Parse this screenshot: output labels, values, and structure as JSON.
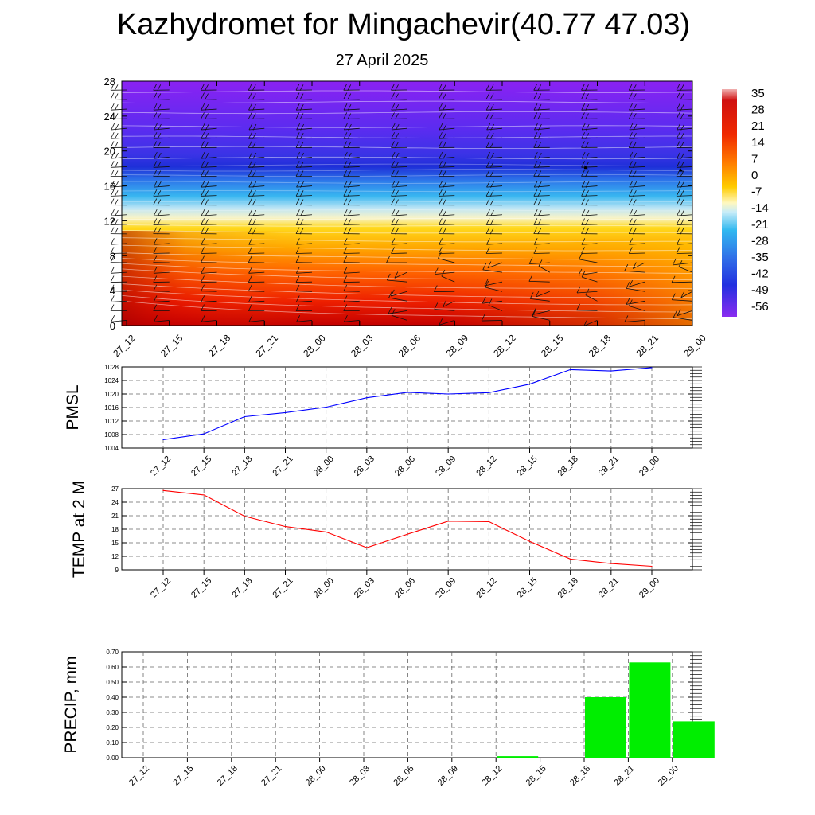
{
  "header": {
    "title": "Kazhydromet for Mingachevir(40.77 47.03)",
    "subtitle": "27 April 2025"
  },
  "chart_data": [
    {
      "type": "heatmap",
      "description_kind": "vertical cross-section with filled contours and wind barbs",
      "x_categories": [
        "27_12",
        "27_15",
        "27_18",
        "27_21",
        "28_00",
        "28_03",
        "28_06",
        "28_09",
        "28_12",
        "28_15",
        "28_18",
        "28_21",
        "29_00"
      ],
      "y_ticks": [
        0,
        4,
        8,
        12,
        16,
        20,
        24,
        28
      ],
      "ylim": [
        0,
        28
      ],
      "colorbar_labels": [
        "35",
        "28",
        "21",
        "14",
        "7",
        "0",
        "-7",
        "-14",
        "-21",
        "-28",
        "-35",
        "-42",
        "-49",
        "-56"
      ],
      "colors": {
        "top": "#7a22f0",
        "cold": "#2233dd",
        "cyan": "#33aaee",
        "pale": "#f5f0c8",
        "yellow": "#ffd21c",
        "orange": "#ff8a00",
        "red": "#ee2200",
        "darkred": "#b80000"
      }
    },
    {
      "type": "line",
      "ylabel": "PMSL",
      "categories": [
        "27_12",
        "27_15",
        "27_18",
        "27_21",
        "28_00",
        "28_03",
        "28_06",
        "28_09",
        "28_12",
        "28_15",
        "28_18",
        "28_21",
        "29_00"
      ],
      "values": [
        1006.5,
        1008.2,
        1013.3,
        1014.5,
        1016.1,
        1018.9,
        1020.5,
        1020.0,
        1020.4,
        1022.9,
        1027.2,
        1026.8,
        1027.8
      ],
      "y_ticks": [
        1004,
        1008,
        1012,
        1016,
        1020,
        1024,
        1028
      ],
      "ylim": [
        1004,
        1028
      ],
      "color": "#0000ff"
    },
    {
      "type": "line",
      "ylabel": "TEMP at 2 M",
      "categories": [
        "27_12",
        "27_15",
        "27_18",
        "27_21",
        "28_00",
        "28_03",
        "28_06",
        "28_09",
        "28_12",
        "28_15",
        "28_18",
        "28_21",
        "29_00"
      ],
      "values": [
        26.6,
        25.6,
        20.9,
        18.6,
        17.4,
        13.9,
        16.9,
        19.8,
        19.7,
        15.3,
        11.4,
        10.4,
        9.8
      ],
      "y_ticks": [
        9,
        12,
        15,
        18,
        21,
        24,
        27
      ],
      "ylim": [
        9,
        27
      ],
      "color": "#ff0000"
    },
    {
      "type": "bar",
      "ylabel": "PRECIP, mm",
      "categories": [
        "27_12",
        "27_15",
        "27_18",
        "27_21",
        "28_00",
        "28_03",
        "28_06",
        "28_09",
        "28_12",
        "28_15",
        "28_18",
        "28_21",
        "29_00"
      ],
      "values": [
        0,
        0,
        0,
        0,
        0,
        0,
        0,
        0,
        0.01,
        0,
        0.4,
        0.63,
        0.24
      ],
      "y_ticks": [
        "0.00",
        "0.10",
        "0.20",
        "0.30",
        "0.40",
        "0.50",
        "0.60",
        "0.70"
      ],
      "ylim": [
        0,
        0.7
      ],
      "color": "#00ee00"
    }
  ]
}
